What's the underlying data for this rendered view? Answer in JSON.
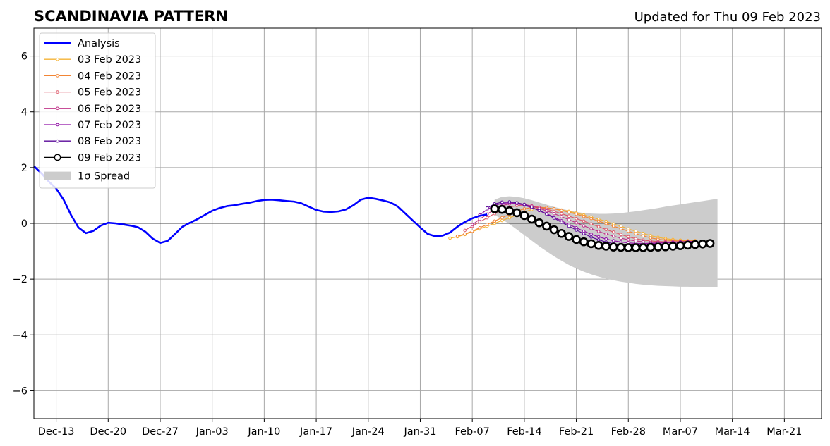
{
  "chart_data": {
    "type": "line",
    "title": "SCANDINAVIA PATTERN",
    "subtitle": "Updated for Thu 09 Feb 2023",
    "xlabel": "",
    "ylabel": "",
    "xlim": [
      "2022-12-10",
      "2023-03-26"
    ],
    "ylim": [
      -7,
      7
    ],
    "grid": true,
    "legend_position": "top-left",
    "x_ticks": [
      "2022-12-13",
      "2022-12-20",
      "2022-12-27",
      "2023-01-03",
      "2023-01-10",
      "2023-01-17",
      "2023-01-24",
      "2023-01-31",
      "2023-02-07",
      "2023-02-14",
      "2023-02-21",
      "2023-02-28",
      "2023-03-07",
      "2023-03-14",
      "2023-03-21"
    ],
    "x_tick_labels": [
      "Dec-13",
      "Dec-20",
      "Dec-27",
      "Jan-03",
      "Jan-10",
      "Jan-17",
      "Jan-24",
      "Jan-31",
      "Feb-07",
      "Feb-14",
      "Feb-21",
      "Feb-28",
      "Mar-07",
      "Mar-14",
      "Mar-21"
    ],
    "y_ticks": [
      6,
      4,
      2,
      0,
      -2,
      -4,
      -6
    ],
    "y_tick_labels": [
      "6",
      "4",
      "2",
      "0",
      "−2",
      "−4",
      "−6"
    ],
    "analysis": {
      "name": "Analysis",
      "color": "#0000ff",
      "start_date": "2022-12-10",
      "values": [
        2.05,
        1.8,
        1.5,
        1.25,
        0.85,
        0.3,
        -0.15,
        -0.35,
        -0.27,
        -0.08,
        0.02,
        0.0,
        -0.04,
        -0.08,
        -0.14,
        -0.3,
        -0.55,
        -0.7,
        -0.63,
        -0.38,
        -0.12,
        0.02,
        0.15,
        0.3,
        0.45,
        0.55,
        0.62,
        0.65,
        0.7,
        0.74,
        0.8,
        0.84,
        0.85,
        0.83,
        0.8,
        0.78,
        0.72,
        0.6,
        0.48,
        0.42,
        0.41,
        0.43,
        0.5,
        0.65,
        0.85,
        0.92,
        0.88,
        0.82,
        0.75,
        0.6,
        0.35,
        0.1,
        -0.15,
        -0.38,
        -0.46,
        -0.44,
        -0.33,
        -0.12,
        0.05,
        0.18,
        0.27,
        0.32
      ]
    },
    "forecasts": [
      {
        "name": "03 Feb 2023",
        "color": "#f5b335",
        "start_date": "2023-02-04",
        "values": [
          -0.53,
          -0.48,
          -0.4,
          -0.3,
          -0.2,
          -0.1,
          0.0,
          0.1,
          0.2,
          0.3,
          0.4,
          0.5,
          0.55,
          0.55,
          0.52,
          0.48,
          0.43,
          0.37,
          0.3,
          0.23,
          0.15,
          0.07,
          -0.02,
          -0.1,
          -0.2,
          -0.28,
          -0.36,
          -0.44,
          -0.5,
          -0.55,
          -0.58,
          -0.6,
          -0.62,
          -0.62
        ]
      },
      {
        "name": "04 Feb 2023",
        "color": "#f28535",
        "start_date": "2023-02-05",
        "values": [
          -0.46,
          -0.38,
          -0.28,
          -0.16,
          -0.04,
          0.08,
          0.2,
          0.32,
          0.44,
          0.52,
          0.57,
          0.58,
          0.56,
          0.52,
          0.46,
          0.4,
          0.33,
          0.25,
          0.17,
          0.08,
          -0.01,
          -0.1,
          -0.19,
          -0.28,
          -0.37,
          -0.45,
          -0.52,
          -0.57,
          -0.6,
          -0.62,
          -0.63,
          -0.63,
          -0.63
        ]
      },
      {
        "name": "05 Feb 2023",
        "color": "#dd5a6a",
        "start_date": "2023-02-06",
        "values": [
          -0.25,
          -0.1,
          0.05,
          0.2,
          0.35,
          0.48,
          0.58,
          0.64,
          0.66,
          0.63,
          0.58,
          0.51,
          0.43,
          0.35,
          0.26,
          0.17,
          0.08,
          -0.02,
          -0.12,
          -0.22,
          -0.31,
          -0.4,
          -0.48,
          -0.55,
          -0.6,
          -0.63,
          -0.65,
          -0.66,
          -0.66,
          -0.66,
          -0.65,
          -0.64
        ]
      },
      {
        "name": "06 Feb 2023",
        "color": "#c0358a",
        "start_date": "2023-02-07",
        "values": [
          -0.05,
          0.15,
          0.33,
          0.5,
          0.63,
          0.7,
          0.71,
          0.68,
          0.62,
          0.54,
          0.45,
          0.35,
          0.24,
          0.13,
          0.02,
          -0.09,
          -0.19,
          -0.29,
          -0.38,
          -0.46,
          -0.53,
          -0.59,
          -0.63,
          -0.66,
          -0.68,
          -0.68,
          -0.68,
          -0.67,
          -0.66,
          -0.65,
          -0.64
        ]
      },
      {
        "name": "07 Feb 2023",
        "color": "#9112a6",
        "start_date": "2023-02-08",
        "values": [
          0.3,
          0.5,
          0.64,
          0.72,
          0.74,
          0.71,
          0.65,
          0.56,
          0.46,
          0.35,
          0.22,
          0.09,
          -0.04,
          -0.16,
          -0.28,
          -0.39,
          -0.48,
          -0.56,
          -0.62,
          -0.67,
          -0.7,
          -0.72,
          -0.72,
          -0.72,
          -0.71,
          -0.7,
          -0.69,
          -0.67,
          -0.66,
          -0.64
        ]
      },
      {
        "name": "08 Feb 2023",
        "color": "#5a0a99",
        "start_date": "2023-02-09",
        "values": [
          0.55,
          0.7,
          0.76,
          0.77,
          0.74,
          0.68,
          0.58,
          0.46,
          0.33,
          0.19,
          0.04,
          -0.1,
          -0.24,
          -0.37,
          -0.49,
          -0.59,
          -0.67,
          -0.73,
          -0.77,
          -0.79,
          -0.8,
          -0.8,
          -0.79,
          -0.78,
          -0.76,
          -0.75,
          -0.73,
          -0.71,
          -0.7
        ]
      },
      {
        "name": "09 Feb 2023",
        "color": "#000000",
        "start_date": "2023-02-10",
        "values": [
          0.52,
          0.5,
          0.45,
          0.38,
          0.28,
          0.15,
          0.02,
          -0.1,
          -0.23,
          -0.36,
          -0.47,
          -0.58,
          -0.66,
          -0.73,
          -0.79,
          -0.82,
          -0.85,
          -0.86,
          -0.87,
          -0.87,
          -0.87,
          -0.86,
          -0.85,
          -0.84,
          -0.82,
          -0.8,
          -0.78,
          -0.76,
          -0.74,
          -0.72
        ]
      }
    ],
    "spread": {
      "name": "1σ Spread",
      "color": "#cccccc",
      "start_date": "2023-02-10",
      "upper": [
        0.85,
        0.95,
        0.97,
        0.95,
        0.9,
        0.83,
        0.75,
        0.67,
        0.59,
        0.52,
        0.46,
        0.41,
        0.37,
        0.35,
        0.34,
        0.34,
        0.35,
        0.37,
        0.4,
        0.43,
        0.47,
        0.51,
        0.55,
        0.6,
        0.64,
        0.68,
        0.72,
        0.76,
        0.8,
        0.84,
        0.88
      ],
      "lower": [
        0.3,
        0.15,
        -0.03,
        -0.22,
        -0.42,
        -0.62,
        -0.82,
        -1.0,
        -1.18,
        -1.34,
        -1.49,
        -1.62,
        -1.73,
        -1.83,
        -1.91,
        -1.98,
        -2.04,
        -2.09,
        -2.13,
        -2.17,
        -2.2,
        -2.22,
        -2.24,
        -2.25,
        -2.26,
        -2.27,
        -2.27,
        -2.28,
        -2.28,
        -2.28,
        -2.28
      ]
    },
    "legend_entries": [
      "Analysis",
      "03 Feb 2023",
      "04 Feb 2023",
      "05 Feb 2023",
      "06 Feb 2023",
      "07 Feb 2023",
      "08 Feb 2023",
      "09 Feb 2023",
      "1σ Spread"
    ]
  }
}
